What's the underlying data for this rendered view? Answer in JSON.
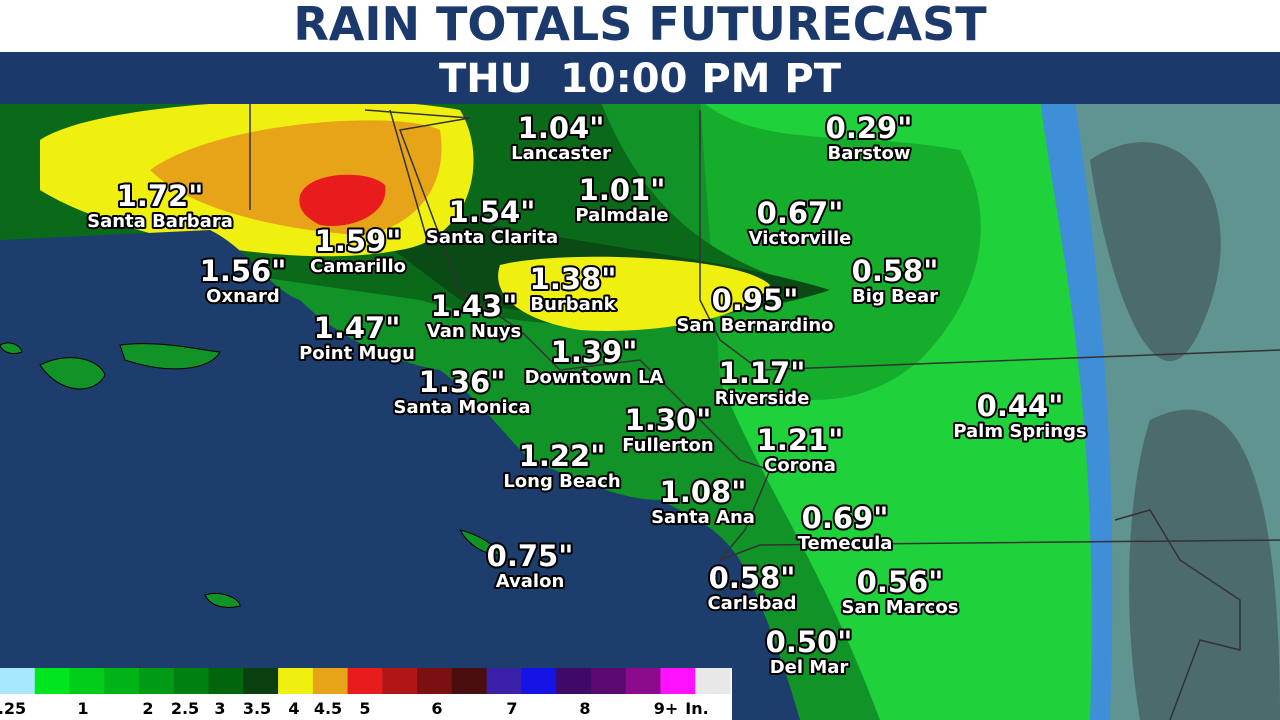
{
  "header": {
    "title": "RAIN TOTALS FUTURECAST",
    "subtitle": "THU  10:00 PM PT"
  },
  "locations": [
    {
      "value": "1.04\"",
      "name": "Lancaster"
    },
    {
      "value": "0.29\"",
      "name": "Barstow"
    },
    {
      "value": "1.72\"",
      "name": "Santa Barbara"
    },
    {
      "value": "1.01\"",
      "name": "Palmdale"
    },
    {
      "value": "1.54\"",
      "name": "Santa Clarita"
    },
    {
      "value": "0.67\"",
      "name": "Victorville"
    },
    {
      "value": "1.59\"",
      "name": "Camarillo"
    },
    {
      "value": "1.56\"",
      "name": "Oxnard"
    },
    {
      "value": "1.38\"",
      "name": "Burbank"
    },
    {
      "value": "0.58\"",
      "name": "Big Bear"
    },
    {
      "value": "1.43\"",
      "name": "Van Nuys"
    },
    {
      "value": "0.95\"",
      "name": "San Bernardino"
    },
    {
      "value": "1.47\"",
      "name": "Point Mugu"
    },
    {
      "value": "1.39\"",
      "name": "Downtown LA"
    },
    {
      "value": "1.36\"",
      "name": "Santa Monica"
    },
    {
      "value": "1.17\"",
      "name": "Riverside"
    },
    {
      "value": "0.44\"",
      "name": "Palm Springs"
    },
    {
      "value": "1.30\"",
      "name": "Fullerton"
    },
    {
      "value": "1.21\"",
      "name": "Corona"
    },
    {
      "value": "1.22\"",
      "name": "Long Beach"
    },
    {
      "value": "1.08\"",
      "name": "Santa Ana"
    },
    {
      "value": "0.69\"",
      "name": "Temecula"
    },
    {
      "value": "0.75\"",
      "name": "Avalon"
    },
    {
      "value": "0.58\"",
      "name": "Carlsbad"
    },
    {
      "value": "0.56\"",
      "name": "San Marcos"
    },
    {
      "value": "0.50\"",
      "name": "Del Mar"
    }
  ],
  "legend": {
    "labels": [
      ".25",
      "1",
      "2",
      "2.5",
      "3",
      "3.5",
      "4",
      "4.5",
      "5",
      "6",
      "7",
      "8",
      "9+",
      "In."
    ],
    "colors": [
      "#a8e8ff",
      "#00e61e",
      "#00cc1a",
      "#00b316",
      "#009a14",
      "#008010",
      "#00650d",
      "#0a4010",
      "#f0f010",
      "#e8a418",
      "#e81c1c",
      "#b01616",
      "#7a1010",
      "#4a0e0e",
      "#3a1fa8",
      "#1414e6",
      "#3e0a66",
      "#5a0a6e",
      "#8c0a8c",
      "#ff10ff",
      "#e8e8e8"
    ]
  }
}
